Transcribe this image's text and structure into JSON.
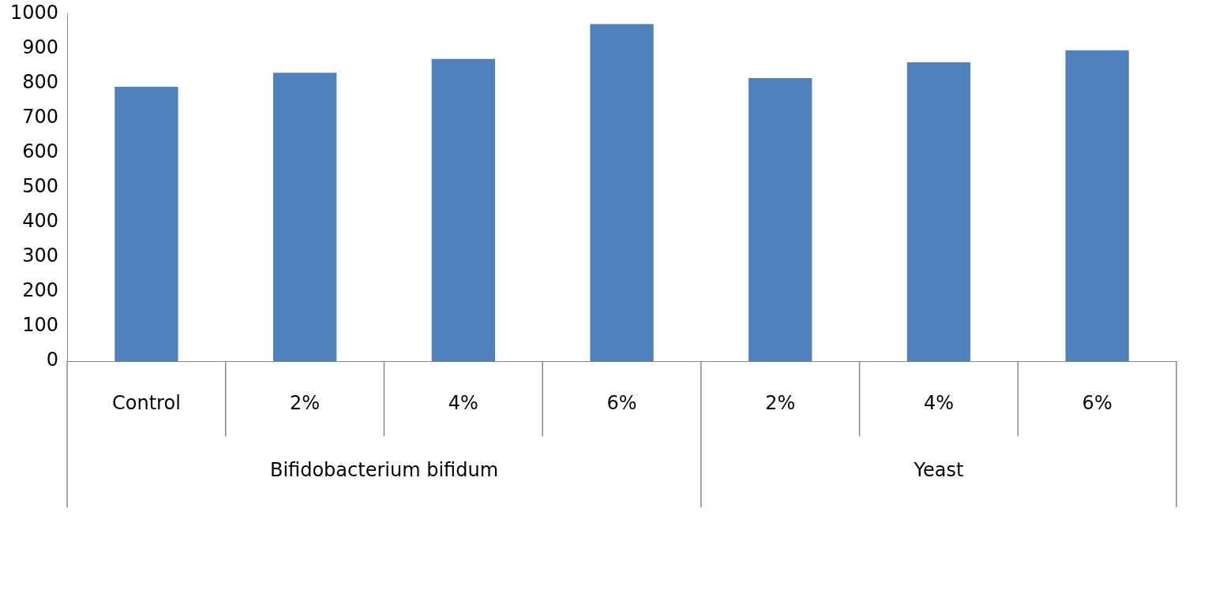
{
  "chart_data": {
    "type": "bar",
    "categories": [
      "Control",
      "2%",
      "4%",
      "6%",
      "2%",
      "4%",
      "6%"
    ],
    "values": [
      790,
      830,
      870,
      970,
      815,
      860,
      895
    ],
    "color": "#4f81bd",
    "ylim": [
      0,
      1000
    ],
    "yticks": [
      0,
      100,
      200,
      300,
      400,
      500,
      600,
      700,
      800,
      900,
      1000
    ],
    "annotations": [
      "Bifidobacterium bifidum",
      "Yeast"
    ],
    "grid": false,
    "legend": false
  }
}
